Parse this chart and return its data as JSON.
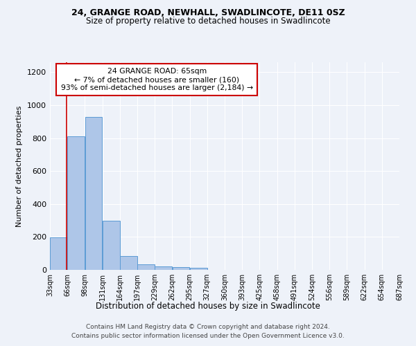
{
  "title1": "24, GRANGE ROAD, NEWHALL, SWADLINCOTE, DE11 0SZ",
  "title2": "Size of property relative to detached houses in Swadlincote",
  "xlabel": "Distribution of detached houses by size in Swadlincote",
  "ylabel": "Number of detached properties",
  "footnote1": "Contains HM Land Registry data © Crown copyright and database right 2024.",
  "footnote2": "Contains public sector information licensed under the Open Government Licence v3.0.",
  "annotation_title": "24 GRANGE ROAD: 65sqm",
  "annotation_line1": "← 7% of detached houses are smaller (160)",
  "annotation_line2": "93% of semi-detached houses are larger (2,184) →",
  "bar_edges": [
    33,
    66,
    99,
    132,
    165,
    198,
    231,
    264,
    297,
    330,
    363,
    396,
    429,
    462,
    495,
    528,
    561,
    594,
    627,
    660,
    693
  ],
  "bar_heights": [
    197,
    810,
    930,
    300,
    84,
    35,
    20,
    18,
    12,
    0,
    0,
    0,
    0,
    0,
    0,
    0,
    0,
    0,
    0,
    0
  ],
  "bar_color": "#aec6e8",
  "bar_edgecolor": "#5b9bd5",
  "tick_labels": [
    "33sqm",
    "66sqm",
    "98sqm",
    "131sqm",
    "164sqm",
    "197sqm",
    "229sqm",
    "262sqm",
    "295sqm",
    "327sqm",
    "360sqm",
    "393sqm",
    "425sqm",
    "458sqm",
    "491sqm",
    "524sqm",
    "556sqm",
    "589sqm",
    "622sqm",
    "654sqm",
    "687sqm"
  ],
  "property_line_x": 65,
  "property_line_color": "#cc0000",
  "ylim": [
    0,
    1260
  ],
  "yticks": [
    0,
    200,
    400,
    600,
    800,
    1000,
    1200
  ],
  "bg_color": "#eef2f9",
  "grid_color": "#ffffff",
  "annotation_box_color": "#ffffff",
  "annotation_box_edgecolor": "#cc0000"
}
